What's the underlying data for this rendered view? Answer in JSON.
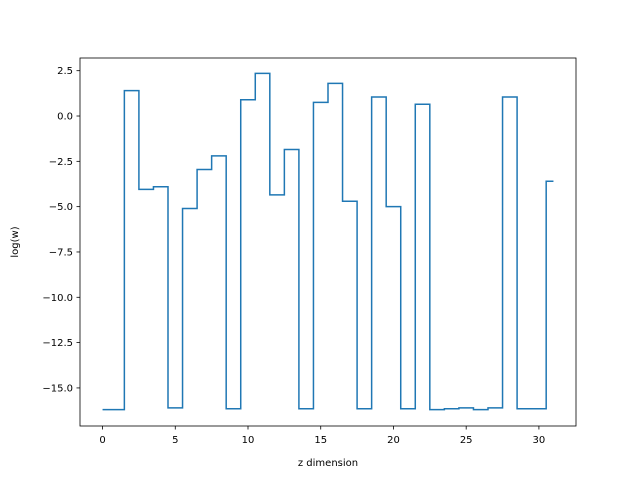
{
  "chart_data": {
    "type": "line",
    "drawstyle": "steps-mid",
    "xlabel": "z dimension",
    "ylabel": "log(w)",
    "xlim": [
      -1.55,
      32.55
    ],
    "ylim": [
      -17.1,
      3.2
    ],
    "xticks": [
      0,
      5,
      10,
      15,
      20,
      25,
      30
    ],
    "xtick_labels": [
      "0",
      "5",
      "10",
      "15",
      "20",
      "25",
      "30"
    ],
    "yticks": [
      2.5,
      0.0,
      -2.5,
      -5.0,
      -7.5,
      -10.0,
      -12.5,
      -15.0
    ],
    "ytick_labels": [
      "2.5",
      "0.0",
      "−2.5",
      "−5.0",
      "−7.5",
      "−10.0",
      "−12.5",
      "−15.0"
    ],
    "grid": false,
    "color": "#1f77b4",
    "x": [
      0,
      1,
      2,
      3,
      4,
      5,
      6,
      7,
      8,
      9,
      10,
      11,
      12,
      13,
      14,
      15,
      16,
      17,
      18,
      19,
      20,
      21,
      22,
      23,
      24,
      25,
      26,
      27,
      28,
      29,
      30,
      31
    ],
    "y": [
      -16.2,
      -16.2,
      1.4,
      -4.05,
      -3.9,
      -16.1,
      -5.1,
      -2.95,
      -2.2,
      -16.15,
      0.9,
      2.35,
      -4.35,
      -1.85,
      -16.15,
      0.75,
      1.8,
      -4.7,
      -16.15,
      1.05,
      -5.0,
      -16.15,
      0.65,
      -16.2,
      -16.15,
      -16.1,
      -16.2,
      -16.1,
      1.05,
      -16.15,
      -16.15,
      -3.6
    ]
  }
}
